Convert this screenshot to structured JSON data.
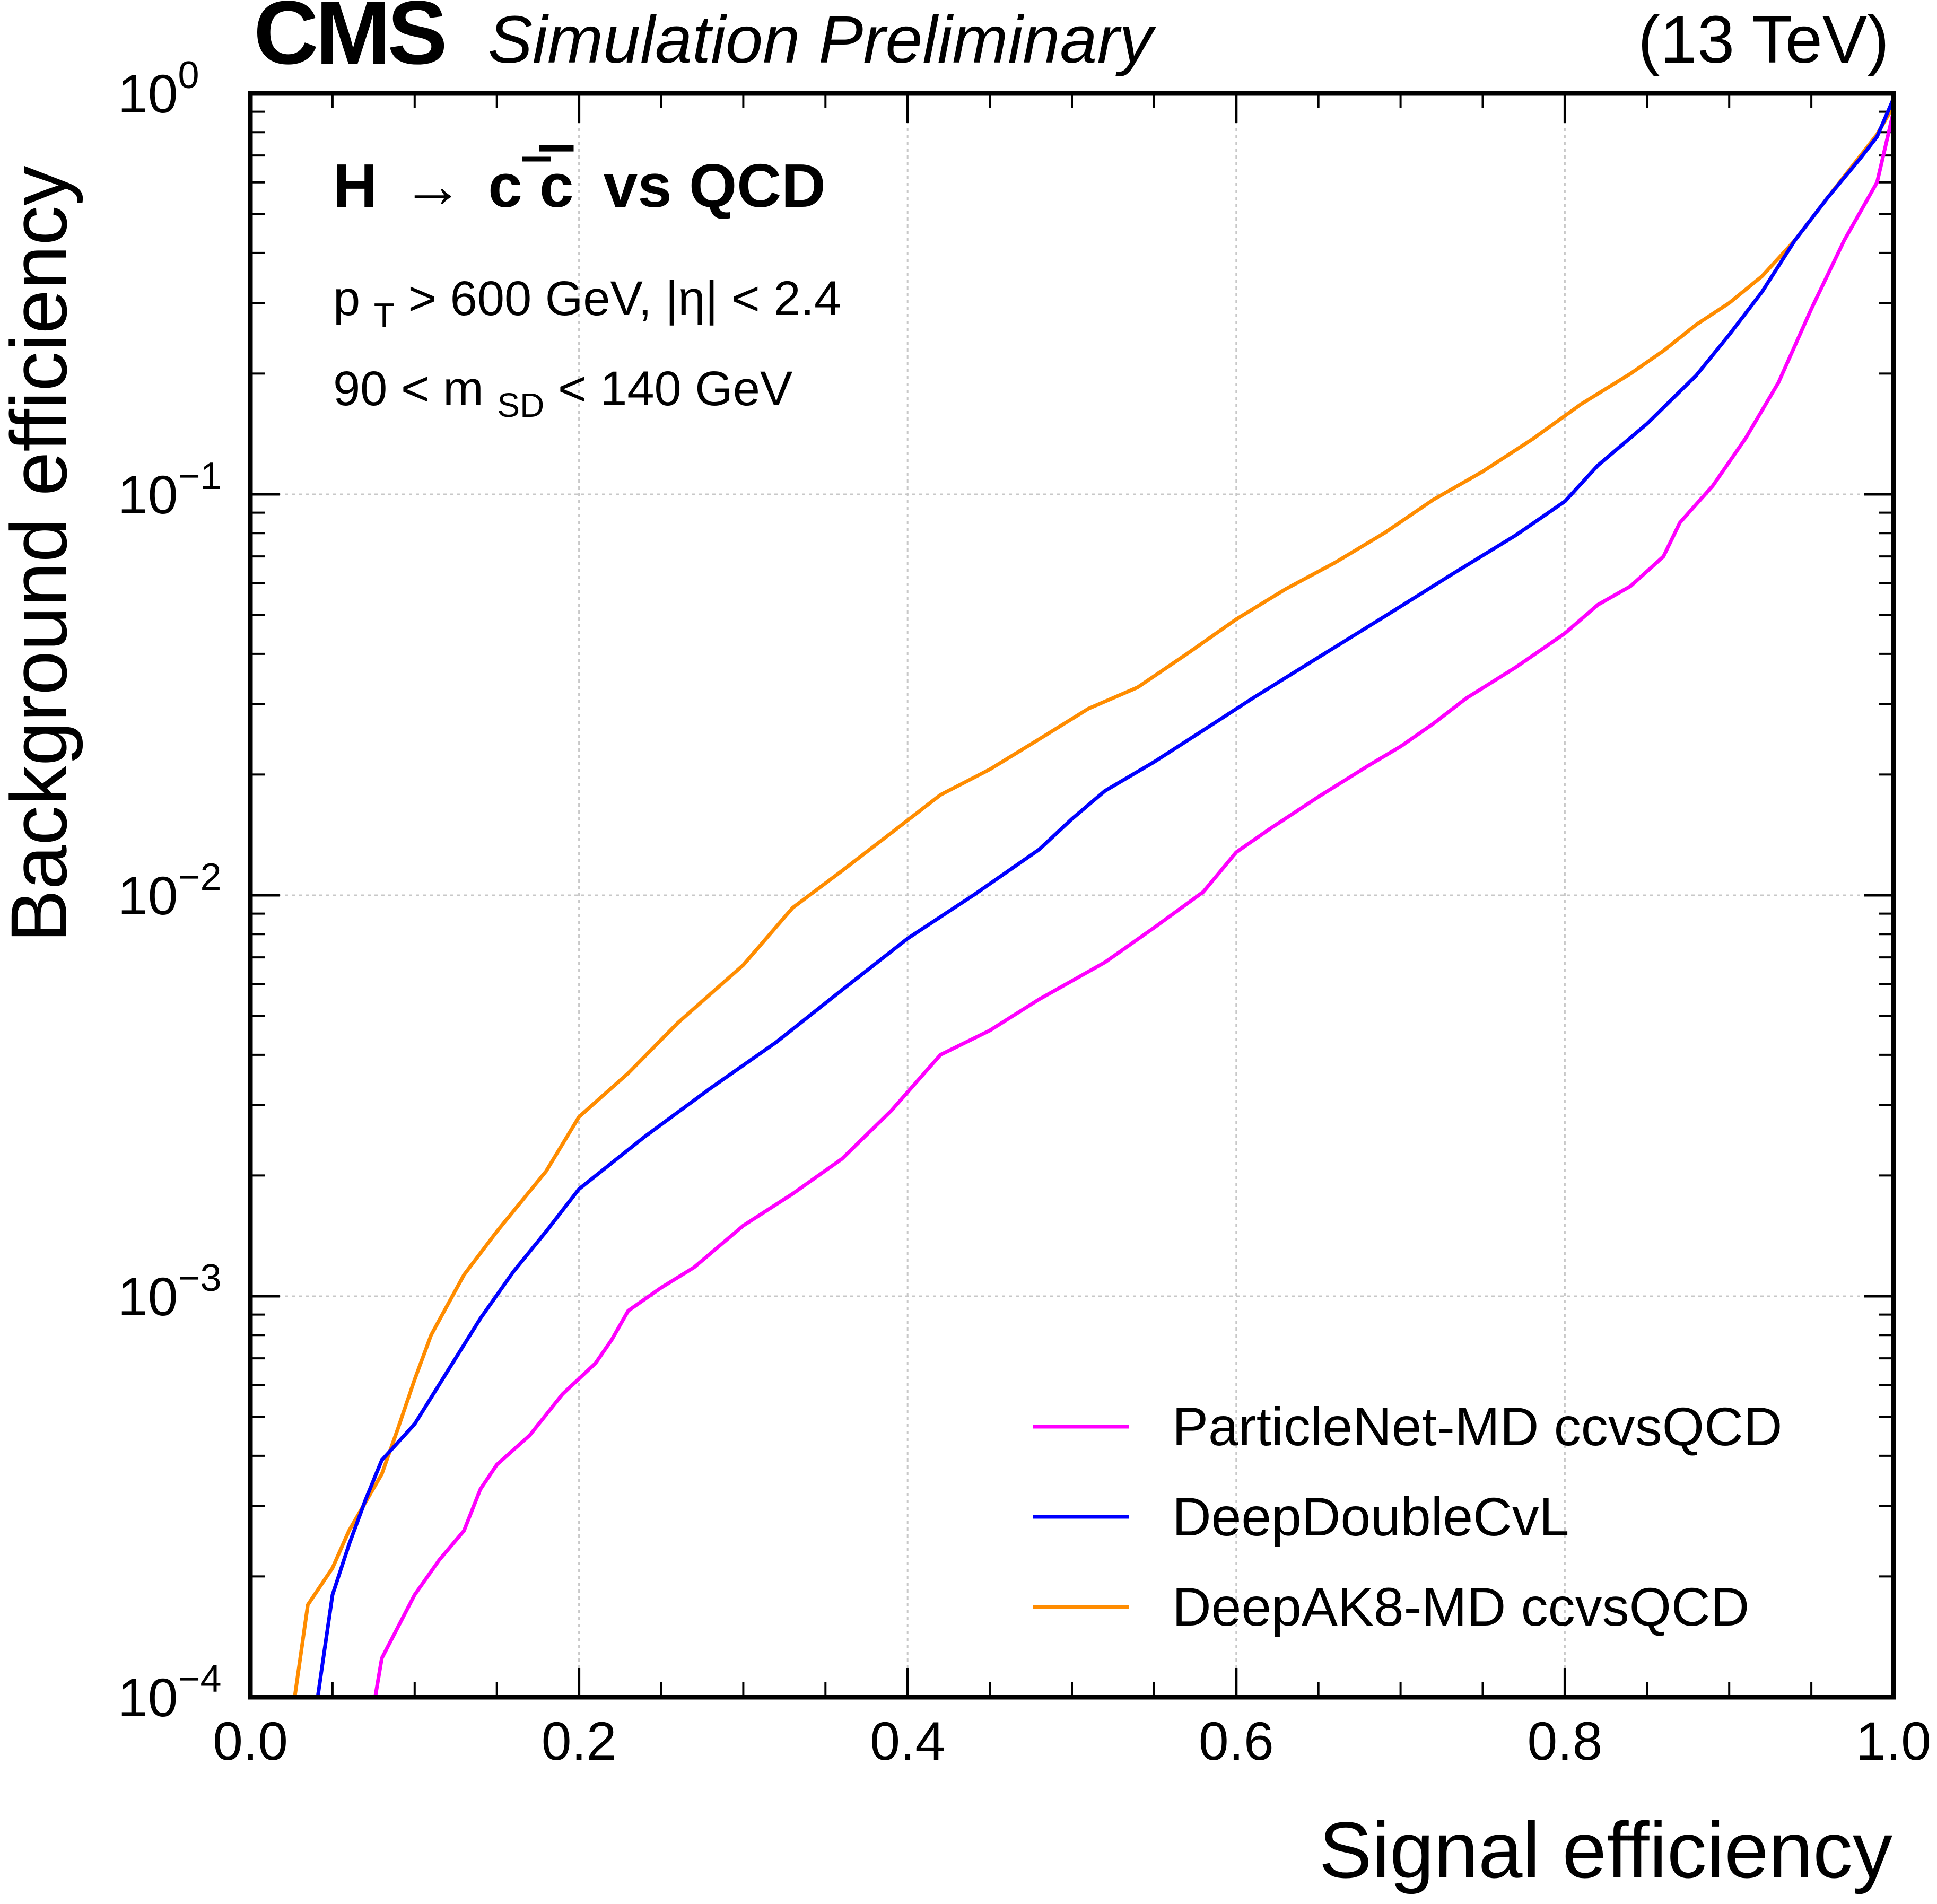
{
  "header": {
    "experiment": "CMS",
    "status": "Simulation Preliminary",
    "energy": "(13 TeV)"
  },
  "annotations": {
    "process_h": "H",
    "process_arrow": "→",
    "process_c1": "c",
    "process_c2": "c",
    "process_vs": "vs QCD",
    "cut_pt_p": "p",
    "cut_pt_sub": "T",
    "cut_pt_rest": " > 600 GeV,   |η| < 2.4",
    "cut_m_pre": "90 < m",
    "cut_m_sub": "SD",
    "cut_m_post": " < 140 GeV"
  },
  "chart_data": {
    "type": "line",
    "xlabel": "Signal efficiency",
    "ylabel": "Background efficiency",
    "xlim": [
      0.0,
      1.0
    ],
    "ylim": [
      0.0001,
      1.0
    ],
    "yscale": "log",
    "grid": true,
    "legend_position": "bottom-right",
    "x_ticks": [
      "0.0",
      "0.2",
      "0.4",
      "0.6",
      "0.8",
      "1.0"
    ],
    "y_ticks": [
      {
        "base": "10",
        "exp": "0"
      },
      {
        "base": "10",
        "exp": "−1"
      },
      {
        "base": "10",
        "exp": "−2"
      },
      {
        "base": "10",
        "exp": "−3"
      },
      {
        "base": "10",
        "exp": "−4"
      }
    ],
    "series": [
      {
        "name": "ParticleNet-MD ccvsQCD",
        "color": "#ff00ff",
        "points": [
          [
            0.076,
            0.0001
          ],
          [
            0.08,
            0.000125
          ],
          [
            0.09,
            0.00015
          ],
          [
            0.1,
            0.00018
          ],
          [
            0.115,
            0.00022
          ],
          [
            0.13,
            0.00026
          ],
          [
            0.14,
            0.00033
          ],
          [
            0.15,
            0.00038
          ],
          [
            0.17,
            0.00045
          ],
          [
            0.19,
            0.00057
          ],
          [
            0.21,
            0.00068
          ],
          [
            0.22,
            0.00078
          ],
          [
            0.23,
            0.00092
          ],
          [
            0.25,
            0.00105
          ],
          [
            0.27,
            0.00118
          ],
          [
            0.3,
            0.0015
          ],
          [
            0.33,
            0.0018
          ],
          [
            0.36,
            0.0022
          ],
          [
            0.39,
            0.0029
          ],
          [
            0.42,
            0.004
          ],
          [
            0.45,
            0.0046
          ],
          [
            0.48,
            0.0055
          ],
          [
            0.52,
            0.0068
          ],
          [
            0.55,
            0.0083
          ],
          [
            0.58,
            0.0102
          ],
          [
            0.6,
            0.0128
          ],
          [
            0.62,
            0.0146
          ],
          [
            0.65,
            0.0176
          ],
          [
            0.68,
            0.021
          ],
          [
            0.7,
            0.0235
          ],
          [
            0.72,
            0.0268
          ],
          [
            0.74,
            0.031
          ],
          [
            0.77,
            0.037
          ],
          [
            0.8,
            0.045
          ],
          [
            0.82,
            0.053
          ],
          [
            0.84,
            0.059
          ],
          [
            0.86,
            0.07
          ],
          [
            0.87,
            0.085
          ],
          [
            0.89,
            0.105
          ],
          [
            0.91,
            0.138
          ],
          [
            0.93,
            0.19
          ],
          [
            0.95,
            0.29
          ],
          [
            0.97,
            0.43
          ],
          [
            0.99,
            0.6
          ],
          [
            1.0,
            0.9
          ]
        ]
      },
      {
        "name": "DeepDoubleCvL",
        "color": "#0000ff",
        "points": [
          [
            0.041,
            0.0001
          ],
          [
            0.045,
            0.00013
          ],
          [
            0.05,
            0.00018
          ],
          [
            0.06,
            0.00024
          ],
          [
            0.07,
            0.00031
          ],
          [
            0.08,
            0.00039
          ],
          [
            0.1,
            0.00048
          ],
          [
            0.12,
            0.00065
          ],
          [
            0.14,
            0.00088
          ],
          [
            0.16,
            0.00115
          ],
          [
            0.18,
            0.00145
          ],
          [
            0.2,
            0.00185
          ],
          [
            0.24,
            0.0025
          ],
          [
            0.28,
            0.0033
          ],
          [
            0.32,
            0.0043
          ],
          [
            0.36,
            0.0058
          ],
          [
            0.4,
            0.0078
          ],
          [
            0.44,
            0.01
          ],
          [
            0.48,
            0.013
          ],
          [
            0.5,
            0.0155
          ],
          [
            0.52,
            0.0182
          ],
          [
            0.55,
            0.0215
          ],
          [
            0.58,
            0.0258
          ],
          [
            0.61,
            0.031
          ],
          [
            0.65,
            0.0392
          ],
          [
            0.69,
            0.0495
          ],
          [
            0.73,
            0.0627
          ],
          [
            0.77,
            0.079
          ],
          [
            0.8,
            0.096
          ],
          [
            0.82,
            0.118
          ],
          [
            0.85,
            0.15
          ],
          [
            0.88,
            0.198
          ],
          [
            0.9,
            0.25
          ],
          [
            0.92,
            0.32
          ],
          [
            0.94,
            0.43
          ],
          [
            0.96,
            0.55
          ],
          [
            0.98,
            0.69
          ],
          [
            0.99,
            0.78
          ],
          [
            1.0,
            0.97
          ]
        ]
      },
      {
        "name": "DeepAK8-MD ccvsQCD",
        "color": "#ff8c00",
        "points": [
          [
            0.027,
            0.0001
          ],
          [
            0.035,
            0.00017
          ],
          [
            0.05,
            0.00021
          ],
          [
            0.06,
            0.00026
          ],
          [
            0.08,
            0.00036
          ],
          [
            0.09,
            0.00047
          ],
          [
            0.1,
            0.00062
          ],
          [
            0.11,
            0.0008
          ],
          [
            0.13,
            0.00113
          ],
          [
            0.15,
            0.00145
          ],
          [
            0.18,
            0.00205
          ],
          [
            0.2,
            0.0028
          ],
          [
            0.23,
            0.0036
          ],
          [
            0.26,
            0.0048
          ],
          [
            0.3,
            0.0067
          ],
          [
            0.33,
            0.0093
          ],
          [
            0.36,
            0.0115
          ],
          [
            0.39,
            0.0143
          ],
          [
            0.42,
            0.0178
          ],
          [
            0.45,
            0.0206
          ],
          [
            0.48,
            0.0245
          ],
          [
            0.51,
            0.0292
          ],
          [
            0.54,
            0.033
          ],
          [
            0.57,
            0.04
          ],
          [
            0.6,
            0.0488
          ],
          [
            0.63,
            0.058
          ],
          [
            0.66,
            0.0675
          ],
          [
            0.69,
            0.08
          ],
          [
            0.72,
            0.097
          ],
          [
            0.75,
            0.114
          ],
          [
            0.78,
            0.137
          ],
          [
            0.81,
            0.168
          ],
          [
            0.84,
            0.2
          ],
          [
            0.86,
            0.228
          ],
          [
            0.88,
            0.265
          ],
          [
            0.9,
            0.3
          ],
          [
            0.92,
            0.35
          ],
          [
            0.94,
            0.43
          ],
          [
            0.96,
            0.55
          ],
          [
            0.98,
            0.7
          ],
          [
            0.99,
            0.79
          ],
          [
            1.0,
            0.93
          ]
        ]
      }
    ]
  }
}
